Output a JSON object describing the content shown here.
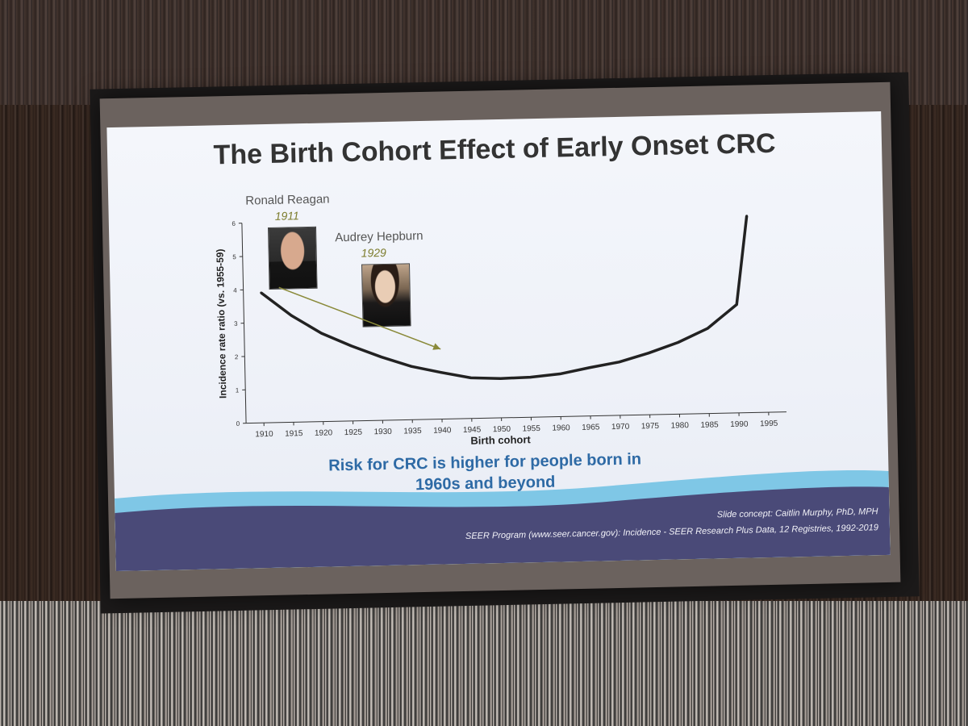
{
  "slide": {
    "title": "The Birth Cohort Effect of Early Onset CRC",
    "risk_line1": "Risk for CRC is higher for people born in",
    "risk_line2": "1960s and beyond",
    "footer_note1": "Slide concept: Caitlin Murphy, PhD, MPH",
    "footer_note2": "SEER Program (www.seer.cancer.gov): Incidence - SEER Research Plus Data, 12 Registries, 1992-2019",
    "annotations": {
      "reagan_name": "Ronald Reagan",
      "reagan_year": "1911",
      "hepburn_name": "Audrey Hepburn",
      "hepburn_year": "1929"
    }
  },
  "colors": {
    "line": "#222222",
    "arrow": "#8a8a3a",
    "risk_text": "#2e6aa5",
    "wave_dark": "#4a4a78",
    "wave_light": "#7fc7e6"
  },
  "chart_data": {
    "type": "line",
    "xlabel": "Birth cohort",
    "ylabel": "Incidence rate ratio (vs. 1955-59)",
    "x_ticks": [
      "1910",
      "1915",
      "1920",
      "1925",
      "1930",
      "1935",
      "1940",
      "1945",
      "1950",
      "1955",
      "1960",
      "1965",
      "1970",
      "1975",
      "1980",
      "1985",
      "1990",
      "1995"
    ],
    "y_ticks": [
      "0",
      "1",
      "2",
      "3",
      "4",
      "5",
      "6"
    ],
    "xlim": [
      1907,
      1998
    ],
    "ylim": [
      0,
      6
    ],
    "grid": false,
    "series": [
      {
        "x": [
          1910,
          1915,
          1920,
          1925,
          1930,
          1935,
          1940,
          1945,
          1950,
          1955,
          1960,
          1965,
          1970,
          1975,
          1980,
          1985,
          1990,
          1992
        ],
        "values": [
          3.9,
          3.2,
          2.65,
          2.25,
          1.9,
          1.6,
          1.4,
          1.22,
          1.18,
          1.2,
          1.28,
          1.45,
          1.6,
          1.85,
          2.15,
          2.55,
          3.25,
          5.9
        ]
      }
    ]
  }
}
